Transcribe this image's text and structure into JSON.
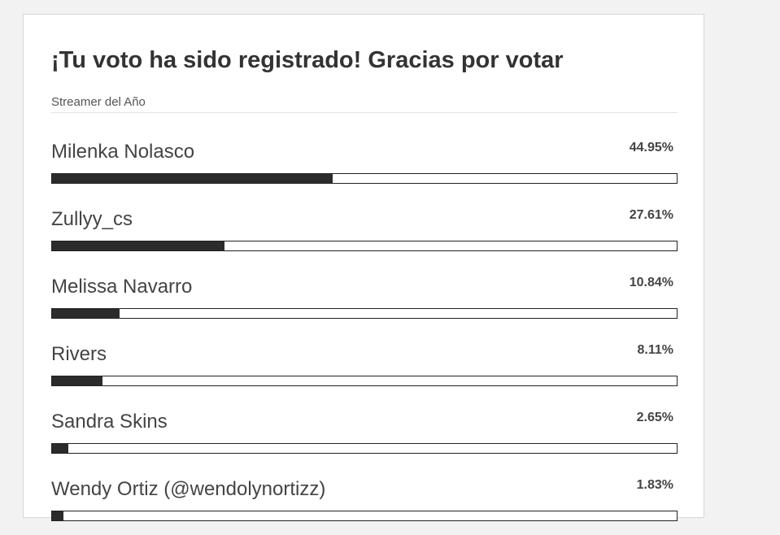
{
  "header": {
    "title": "¡Tu voto ha sido registrado! Gracias por votar",
    "subtitle": "Streamer del Año"
  },
  "options": [
    {
      "name": "Milenka Nolasco",
      "percent": 44.95,
      "percent_label": "44.95%"
    },
    {
      "name": "Zullyy_cs",
      "percent": 27.61,
      "percent_label": "27.61%"
    },
    {
      "name": "Melissa Navarro",
      "percent": 10.84,
      "percent_label": "10.84%"
    },
    {
      "name": "Rivers",
      "percent": 8.11,
      "percent_label": "8.11%"
    },
    {
      "name": "Sandra Skins",
      "percent": 2.65,
      "percent_label": "2.65%"
    },
    {
      "name": "Wendy Ortiz (@wendolynortizz)",
      "percent": 1.83,
      "percent_label": "1.83%"
    }
  ]
}
